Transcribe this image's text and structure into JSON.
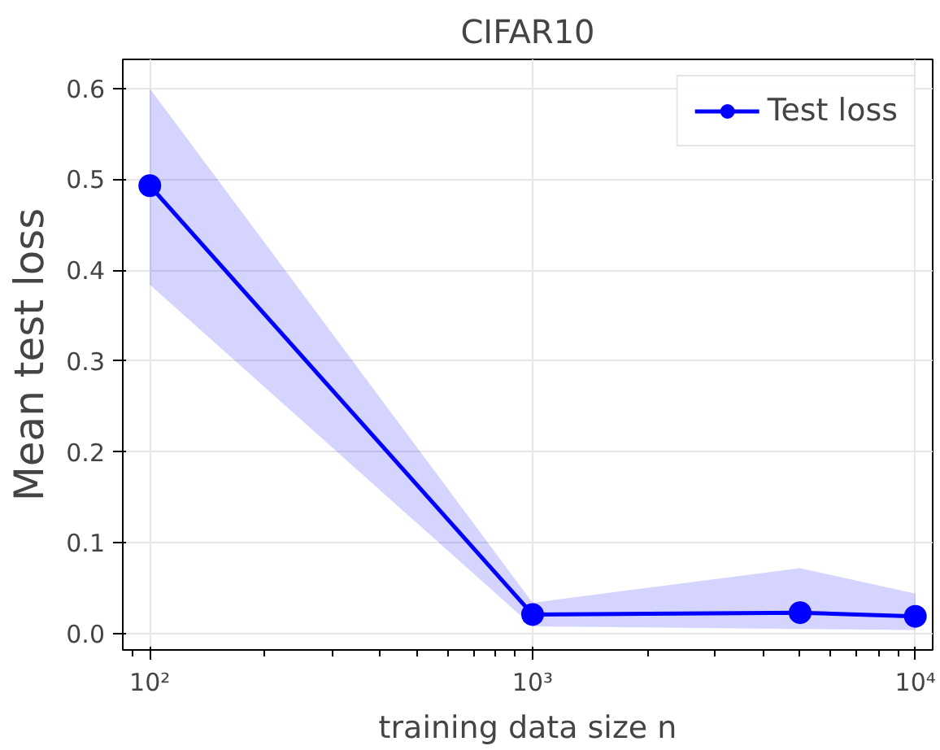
{
  "chart_data": {
    "type": "line",
    "title": "CIFAR10",
    "xlabel": "training data size n",
    "ylabel": "Mean test loss",
    "x": [
      100,
      1000,
      5000,
      10000
    ],
    "series": [
      {
        "name": "Test loss",
        "color": "#0000ff",
        "values": [
          0.493,
          0.021,
          0.023,
          0.019
        ],
        "lower": [
          0.384,
          0.008,
          0.005,
          0.004
        ],
        "upper": [
          0.6,
          0.034,
          0.072,
          0.044
        ]
      }
    ],
    "log": "x",
    "xlim": [
      85,
      11100
    ],
    "ylim": [
      -0.018,
      0.632
    ],
    "xticks": [
      {
        "value": 100,
        "label": "10²"
      },
      {
        "value": 1000,
        "label": "10³"
      },
      {
        "value": 10000,
        "label": "10⁴"
      }
    ],
    "yticks": [
      {
        "value": 0,
        "label": "0.0"
      },
      0.1,
      0.2,
      0.3,
      0.4,
      0.5,
      0.6
    ],
    "grid": true,
    "legend": "top right",
    "marker": "circle",
    "line_style": "solid"
  }
}
